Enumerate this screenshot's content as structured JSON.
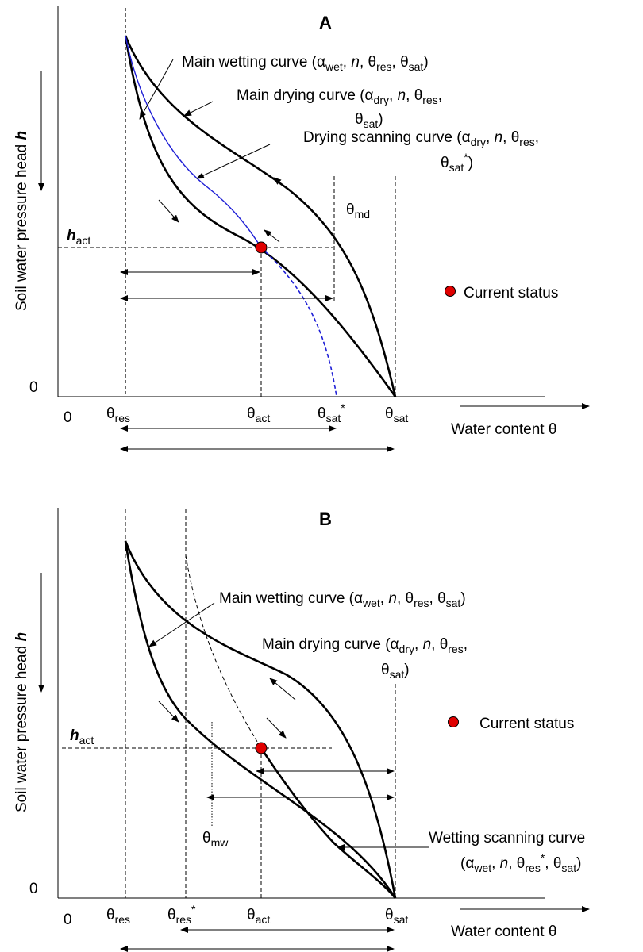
{
  "panel_a": {
    "title": "A",
    "y_axis_label": "Soil water pressure head",
    "y_axis_symbol": "h",
    "x_axis_label": "Water content θ",
    "origin_y": "0",
    "origin_x": "0",
    "h_act": {
      "sym": "h",
      "sub": "act"
    },
    "theta_res": {
      "sym": "θ",
      "sub": "res"
    },
    "theta_act": {
      "sym": "θ",
      "sub": "act"
    },
    "theta_sat_star": {
      "sym": "θ",
      "sub": "sat",
      "sup": "*"
    },
    "theta_sat": {
      "sym": "θ",
      "sub": "sat"
    },
    "theta_md": {
      "sym": "θ",
      "sub": "md"
    },
    "main_wetting": "Main wetting curve (α",
    "main_drying_1": "Main drying curve (α",
    "drying_scanning_1": "Drying scanning curve (α",
    "current_status": "Current status"
  },
  "panel_b": {
    "title": "B",
    "y_axis_label": "Soil water pressure head",
    "y_axis_symbol": "h",
    "x_axis_label": "Water content θ",
    "origin_y": "0",
    "origin_x": "0",
    "h_act": {
      "sym": "h",
      "sub": "act"
    },
    "theta_res": {
      "sym": "θ",
      "sub": "res"
    },
    "theta_res_star": {
      "sym": "θ",
      "sub": "res",
      "sup": "*"
    },
    "theta_act": {
      "sym": "θ",
      "sub": "act"
    },
    "theta_sat": {
      "sym": "θ",
      "sub": "sat"
    },
    "theta_mw": {
      "sym": "θ",
      "sub": "mw"
    },
    "main_wetting": "Main wetting curve (α",
    "main_drying_1": "Main drying curve (α",
    "wetting_scanning_1": "Wetting scanning curve",
    "current_status": "Current status"
  },
  "colors": {
    "current_status": "#e00000",
    "scanning_curve_a": "#1f1fd6"
  }
}
